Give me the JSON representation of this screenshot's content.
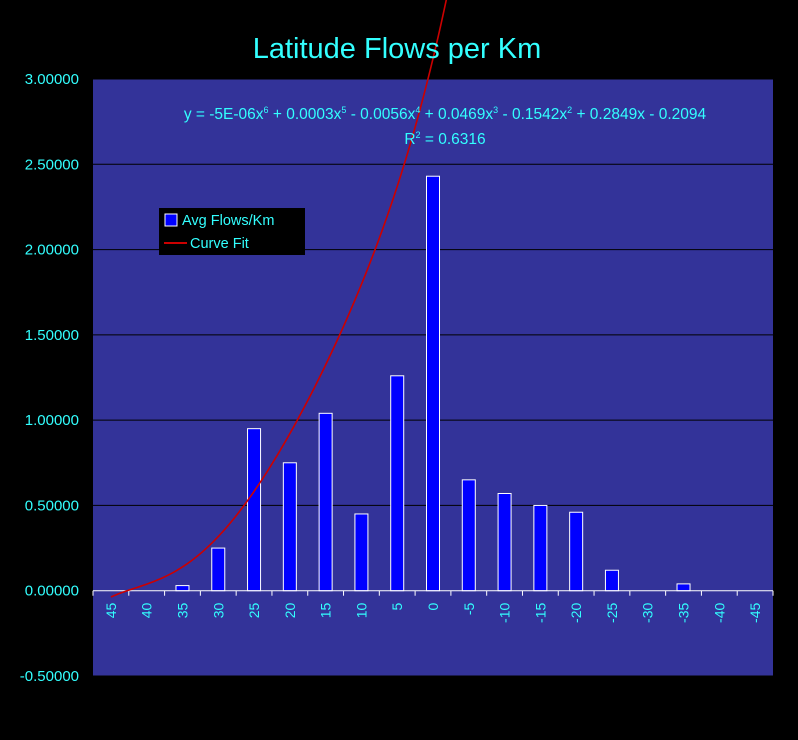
{
  "chart_data": {
    "type": "bar",
    "title": "Latitude Flows per Km",
    "equation": {
      "prefix": "y = -5E-06x",
      "e1": "6",
      "t2": " + 0.0003x",
      "e2": "5",
      "t3": " - 0.0056x",
      "e3": "4",
      "t4": " + 0.0469x",
      "e4": "3",
      "t5": " - 0.1542x",
      "e5": "2",
      "t6": " + 0.2849x - 0.2094"
    },
    "r2": {
      "prefix": "R",
      "exp": "2",
      "suffix": " = 0.6316"
    },
    "categories": [
      "45",
      "40",
      "35",
      "30",
      "25",
      "20",
      "15",
      "10",
      "5",
      "0",
      "-5",
      "-10",
      "-15",
      "-20",
      "-25",
      "-30",
      "-35",
      "-40",
      "-45"
    ],
    "series": [
      {
        "name": "Avg Flows/Km",
        "type": "bar",
        "color": "#0000FF",
        "values": [
          0,
          0,
          0.03,
          0.25,
          0.95,
          0.75,
          1.04,
          0.45,
          1.26,
          2.43,
          0.65,
          0.57,
          0.5,
          0.46,
          0.12,
          0,
          0.04,
          0,
          0
        ]
      },
      {
        "name": "Curve Fit",
        "type": "line",
        "color": "#CC0000",
        "coefficients": [
          -5e-06,
          0.0003,
          -0.0056,
          0.0469,
          -0.1542,
          0.2849,
          -0.2094
        ]
      }
    ],
    "yticks": [
      "3.00000",
      "2.50000",
      "2.00000",
      "1.50000",
      "1.00000",
      "0.50000",
      "0.00000",
      "-0.50000"
    ],
    "ylim": [
      -0.5,
      3.0
    ],
    "grid": true,
    "legend": "upper-left",
    "colors": {
      "background": "#000000",
      "plot": "#333399",
      "text": "#33FFFF",
      "grid": "#000000"
    }
  }
}
